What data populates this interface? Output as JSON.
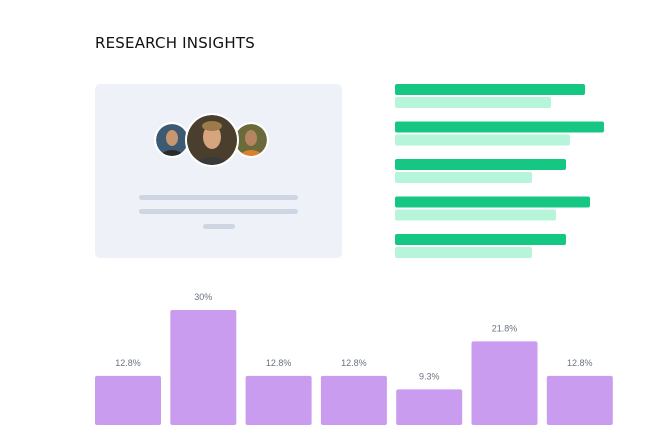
{
  "header": {
    "title": "RESEARCH INSIGHTS"
  },
  "comparison": {
    "series": [
      {
        "color": "#16c784",
        "values": [
          190,
          209,
          171,
          195,
          171
        ]
      },
      {
        "color": "#b6f5da",
        "values": [
          156,
          175,
          137,
          161,
          137
        ]
      }
    ]
  },
  "chart_data": {
    "type": "bar",
    "values": [
      12.8,
      30,
      12.8,
      12.8,
      9.3,
      21.8,
      12.8
    ],
    "value_labels": [
      "12.8%",
      "30%",
      "12.8%",
      "12.8%",
      "9.3%",
      "21.8%",
      "12.8%"
    ],
    "color": "#c99cf0",
    "ylim": [
      0,
      30
    ]
  }
}
